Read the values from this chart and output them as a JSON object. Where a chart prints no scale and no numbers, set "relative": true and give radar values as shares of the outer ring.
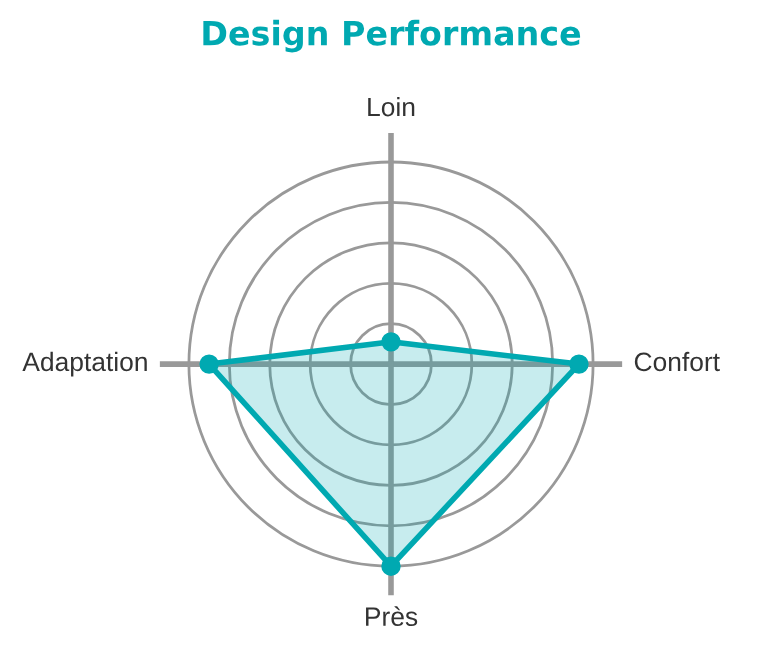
{
  "chart_data": {
    "type": "radar",
    "title": "Design Performance",
    "relative": true,
    "grid": true,
    "marker": "circle",
    "line_style": "solid",
    "categories": [
      "Loin",
      "Confort",
      "Près",
      "Adaptation"
    ],
    "series": [
      {
        "color": "#00a9b1",
        "values": [
          0.11,
          0.93,
          1.0,
          0.9
        ]
      }
    ]
  }
}
